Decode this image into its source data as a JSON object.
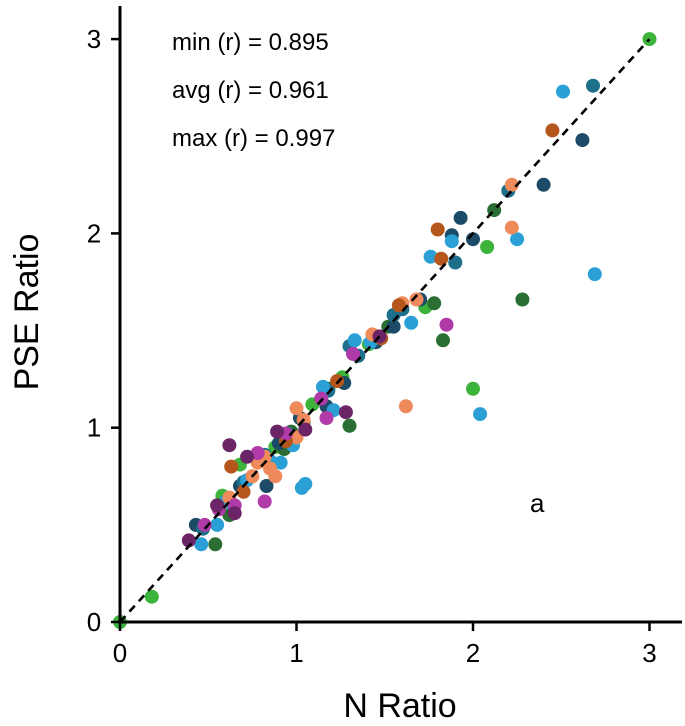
{
  "chart_data": {
    "type": "scatter",
    "title": "",
    "xlabel": "N Ratio",
    "ylabel": "PSE Ratio",
    "xlim": [
      0,
      3.2
    ],
    "ylim": [
      0,
      3.1
    ],
    "xticks": [
      "0",
      "1",
      "2",
      "3"
    ],
    "yticks": [
      "0",
      "1",
      "2",
      "3"
    ],
    "grid": false,
    "legend": "none",
    "reference_line": {
      "style": "dashed",
      "color": "#000000",
      "from": [
        0,
        0
      ],
      "to": [
        3,
        3
      ]
    },
    "annotations": [
      "min (r) = 0.895",
      "avg (r) = 0.961",
      "max (r) = 0.997"
    ],
    "panel_label": "a",
    "colors": {
      "green": "#3cb43c",
      "dark_green": "#2a6e34",
      "navy": "#1b4b66",
      "teal": "#1e6f8c",
      "light_blue": "#2aa0d6",
      "orange": "#ef8a5a",
      "brown": "#b5561c",
      "magenta": "#b03aa8",
      "plum": "#6b2466"
    },
    "series": [
      {
        "color": "green",
        "points": [
          [
            0.0,
            0.0
          ],
          [
            0.18,
            0.13
          ],
          [
            3.0,
            3.0
          ],
          [
            2.08,
            1.93
          ],
          [
            2.0,
            1.2
          ],
          [
            0.68,
            0.81
          ],
          [
            0.95,
            0.95
          ],
          [
            1.09,
            1.12
          ],
          [
            0.58,
            0.65
          ],
          [
            1.26,
            1.26
          ],
          [
            1.73,
            1.62
          ],
          [
            0.88,
            0.9
          ],
          [
            1.41,
            1.43
          ]
        ]
      },
      {
        "color": "dark_green",
        "points": [
          [
            0.54,
            0.4
          ],
          [
            1.3,
            1.01
          ],
          [
            1.83,
            1.45
          ],
          [
            2.28,
            1.66
          ],
          [
            2.12,
            2.12
          ],
          [
            1.78,
            1.64
          ],
          [
            0.97,
            0.98
          ],
          [
            0.62,
            0.55
          ],
          [
            1.18,
            1.2
          ],
          [
            0.8,
            0.84
          ],
          [
            1.52,
            1.52
          ],
          [
            1.04,
            1.03
          ],
          [
            0.93,
            0.89
          ]
        ]
      },
      {
        "color": "navy",
        "points": [
          [
            2.62,
            2.48
          ],
          [
            2.4,
            2.25
          ],
          [
            1.93,
            2.08
          ],
          [
            1.88,
            1.99
          ],
          [
            2.0,
            1.97
          ],
          [
            1.7,
            1.66
          ],
          [
            1.55,
            1.52
          ],
          [
            1.27,
            1.23
          ],
          [
            0.83,
            0.7
          ],
          [
            1.02,
            1.05
          ],
          [
            0.68,
            0.7
          ],
          [
            0.43,
            0.5
          ],
          [
            1.45,
            1.44
          ],
          [
            0.9,
            0.92
          ],
          [
            1.17,
            1.11
          ]
        ]
      },
      {
        "color": "teal",
        "points": [
          [
            2.68,
            2.76
          ],
          [
            2.2,
            2.22
          ],
          [
            1.9,
            1.85
          ],
          [
            1.55,
            1.58
          ],
          [
            1.35,
            1.37
          ],
          [
            1.18,
            1.19
          ],
          [
            0.95,
            0.97
          ],
          [
            0.7,
            0.72
          ],
          [
            0.47,
            0.48
          ],
          [
            1.6,
            1.61
          ],
          [
            0.82,
            0.86
          ],
          [
            1.3,
            1.42
          ]
        ]
      },
      {
        "color": "light_blue",
        "points": [
          [
            2.51,
            2.73
          ],
          [
            2.25,
            1.97
          ],
          [
            2.69,
            1.79
          ],
          [
            2.04,
            1.07
          ],
          [
            1.76,
            1.88
          ],
          [
            1.65,
            1.54
          ],
          [
            1.33,
            1.45
          ],
          [
            1.15,
            1.21
          ],
          [
            1.21,
            1.09
          ],
          [
            1.05,
            0.71
          ],
          [
            1.03,
            0.69
          ],
          [
            0.55,
            0.5
          ],
          [
            0.46,
            0.4
          ],
          [
            0.72,
            0.73
          ],
          [
            0.98,
            0.91
          ],
          [
            0.85,
            0.83
          ],
          [
            1.42,
            1.44
          ],
          [
            1.88,
            1.96
          ],
          [
            0.91,
            0.82
          ],
          [
            0.6,
            0.62
          ]
        ]
      },
      {
        "color": "orange",
        "points": [
          [
            2.22,
            2.25
          ],
          [
            2.22,
            2.03
          ],
          [
            1.62,
            1.11
          ],
          [
            1.68,
            1.66
          ],
          [
            1.6,
            1.64
          ],
          [
            1.43,
            1.48
          ],
          [
            1.0,
            1.1
          ],
          [
            1.04,
            1.04
          ],
          [
            0.85,
            0.79
          ],
          [
            0.78,
            0.82
          ],
          [
            0.62,
            0.64
          ],
          [
            0.75,
            0.75
          ],
          [
            0.88,
            0.75
          ],
          [
            1.0,
            0.95
          ],
          [
            0.82,
            0.85
          ]
        ]
      },
      {
        "color": "brown",
        "points": [
          [
            2.45,
            2.53
          ],
          [
            1.82,
            1.87
          ],
          [
            1.8,
            2.02
          ],
          [
            1.48,
            1.46
          ],
          [
            1.23,
            1.24
          ],
          [
            0.63,
            0.8
          ],
          [
            0.94,
            0.93
          ],
          [
            1.58,
            1.63
          ],
          [
            0.7,
            0.67
          ]
        ]
      },
      {
        "color": "magenta",
        "points": [
          [
            1.85,
            1.53
          ],
          [
            1.14,
            1.15
          ],
          [
            1.17,
            1.05
          ],
          [
            0.82,
            0.62
          ],
          [
            0.56,
            0.58
          ],
          [
            0.65,
            0.6
          ],
          [
            0.78,
            0.87
          ],
          [
            1.32,
            1.38
          ],
          [
            0.94,
            0.97
          ],
          [
            0.48,
            0.5
          ]
        ]
      },
      {
        "color": "plum",
        "points": [
          [
            0.62,
            0.91
          ],
          [
            1.28,
            1.08
          ],
          [
            0.39,
            0.42
          ],
          [
            0.65,
            0.56
          ],
          [
            1.05,
            0.99
          ],
          [
            0.72,
            0.85
          ],
          [
            1.47,
            1.47
          ],
          [
            0.89,
            0.98
          ],
          [
            0.55,
            0.6
          ]
        ]
      }
    ]
  }
}
